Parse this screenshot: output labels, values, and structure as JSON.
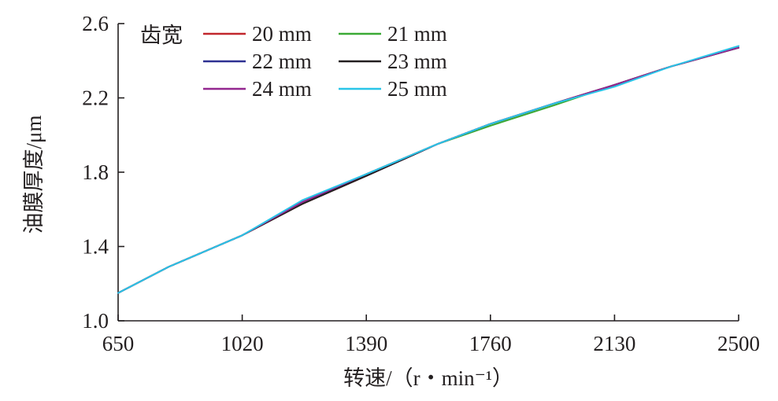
{
  "chart_data": {
    "type": "line",
    "xlabel": "转速/（r・min⁻¹）",
    "ylabel": "油膜厚度/μm",
    "xlim": [
      650,
      2500
    ],
    "ylim": [
      1.0,
      2.6
    ],
    "x_ticks": [
      "650",
      "1020",
      "1390",
      "1760",
      "2130",
      "2500"
    ],
    "y_ticks": [
      "1.0",
      "1.4",
      "1.8",
      "2.2",
      "2.6"
    ],
    "grid": false,
    "legend": {
      "title": "齿宽",
      "placement": "top-left",
      "columns": 2
    },
    "x": [
      650,
      800,
      1020,
      1200,
      1390,
      1600,
      1760,
      1950,
      2130,
      2300,
      2500
    ],
    "series": [
      {
        "name": "20 mm",
        "color": "#c1272d",
        "values": [
          1.15,
          1.29,
          1.46,
          1.63,
          1.78,
          1.95,
          2.06,
          2.17,
          2.27,
          2.37,
          2.47
        ]
      },
      {
        "name": "21 mm",
        "color": "#3aaa35",
        "values": [
          1.15,
          1.29,
          1.46,
          1.64,
          1.79,
          1.95,
          2.05,
          2.16,
          2.27,
          2.37,
          2.47
        ]
      },
      {
        "name": "22 mm",
        "color": "#2e3192",
        "values": [
          1.15,
          1.29,
          1.46,
          1.64,
          1.78,
          1.95,
          2.06,
          2.17,
          2.27,
          2.37,
          2.47
        ]
      },
      {
        "name": "23 mm",
        "color": "#231f20",
        "values": [
          1.15,
          1.29,
          1.46,
          1.63,
          1.78,
          1.95,
          2.06,
          2.17,
          2.27,
          2.37,
          2.47
        ]
      },
      {
        "name": "24 mm",
        "color": "#93278f",
        "values": [
          1.15,
          1.29,
          1.46,
          1.64,
          1.79,
          1.95,
          2.06,
          2.17,
          2.27,
          2.37,
          2.47
        ]
      },
      {
        "name": "25 mm",
        "color": "#29c5e8",
        "values": [
          1.15,
          1.29,
          1.46,
          1.65,
          1.79,
          1.95,
          2.06,
          2.17,
          2.26,
          2.37,
          2.48
        ]
      }
    ]
  }
}
